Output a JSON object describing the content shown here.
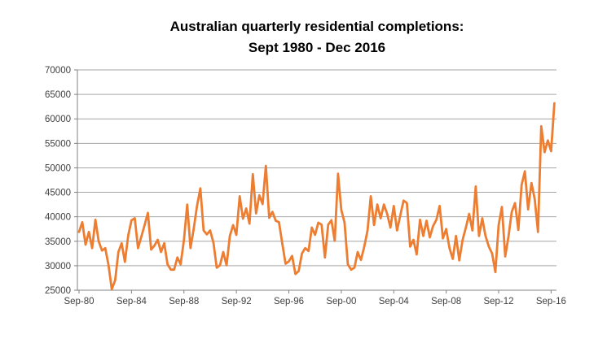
{
  "chart_data": {
    "type": "line",
    "title_line1": "Australian quarterly residential completions:",
    "title_line2": "Sept 1980 - Dec 2016",
    "series_name": "Quarterly residential completions",
    "frequency": "quarterly",
    "x_start": "Sep-1980",
    "x_end": "Dec-2016",
    "values": [
      36900,
      38900,
      34300,
      36900,
      33600,
      39400,
      35000,
      33100,
      33600,
      30100,
      25200,
      27000,
      32800,
      34600,
      30800,
      36200,
      39300,
      39700,
      33600,
      35900,
      38300,
      40800,
      33300,
      34100,
      35300,
      32800,
      34600,
      30300,
      29200,
      29200,
      31700,
      30300,
      35300,
      42500,
      33600,
      37600,
      42200,
      45800,
      37200,
      36400,
      37200,
      34700,
      29600,
      30100,
      32800,
      30100,
      36100,
      38300,
      36300,
      44200,
      39600,
      41700,
      38600,
      48700,
      40700,
      44400,
      42600,
      50400,
      39800,
      41000,
      39200,
      38900,
      34500,
      30400,
      30900,
      32000,
      28300,
      28900,
      32500,
      33600,
      33000,
      37800,
      36300,
      38800,
      38400,
      31700,
      38400,
      39300,
      35100,
      48800,
      41400,
      38800,
      30300,
      29200,
      29600,
      32800,
      31200,
      33900,
      37200,
      44200,
      38300,
      42500,
      39700,
      42500,
      40600,
      37800,
      42200,
      37200,
      40300,
      43300,
      42800,
      33900,
      35300,
      32300,
      39400,
      36100,
      39200,
      35800,
      38100,
      39400,
      42200,
      35600,
      37500,
      33600,
      31400,
      36100,
      31100,
      35300,
      37800,
      40600,
      37200,
      46200,
      36100,
      39700,
      36100,
      33900,
      32500,
      28700,
      38300,
      42000,
      31900,
      36000,
      41000,
      42800,
      37300,
      46500,
      49300,
      41500,
      46900,
      43600,
      36900,
      58500,
      53200,
      55600,
      53400,
      63200
    ],
    "x_tick_labels": [
      "Sep-80",
      "Sep-84",
      "Sep-88",
      "Sep-92",
      "Sep-96",
      "Sep-00",
      "Sep-04",
      "Sep-08",
      "Sep-12",
      "Sep-16"
    ],
    "x_tick_indices": [
      0,
      16,
      32,
      48,
      64,
      80,
      96,
      112,
      128,
      144
    ],
    "y_ticks": [
      70000,
      65000,
      60000,
      55000,
      50000,
      45000,
      40000,
      35000,
      30000,
      25000
    ],
    "ylim": [
      25000,
      70000
    ],
    "grid": "horizontal",
    "legend": "none",
    "line_color": "#ED7D31",
    "background": "#FFFFFF",
    "text_color": "#3f3f3f",
    "gridline_color": "#a6a6a6",
    "axis_color": "#808080"
  }
}
